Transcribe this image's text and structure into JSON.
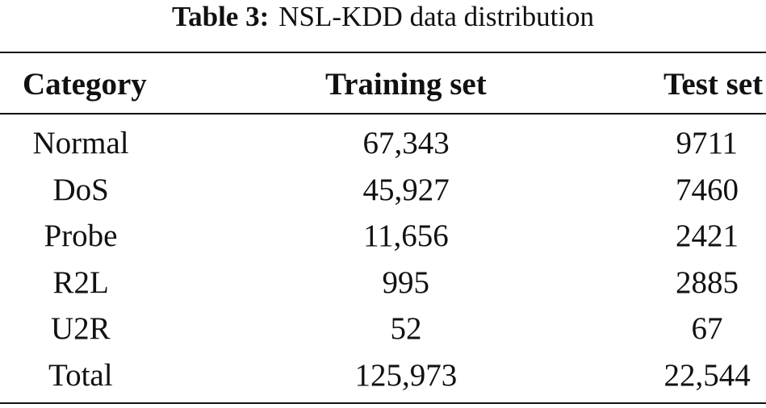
{
  "caption": {
    "label": "Table 3:",
    "title": "NSL-KDD data distribution"
  },
  "table": {
    "header": [
      "Category",
      "Training set",
      "Test set"
    ],
    "rows": [
      [
        "Normal",
        "67,343",
        "9711"
      ],
      [
        "DoS",
        "45,927",
        "7460"
      ],
      [
        "Probe",
        "11,656",
        "2421"
      ],
      [
        "R2L",
        "995",
        "2885"
      ],
      [
        "U2R",
        "52",
        "67"
      ],
      [
        "Total",
        "125,973",
        "22,544"
      ]
    ]
  }
}
